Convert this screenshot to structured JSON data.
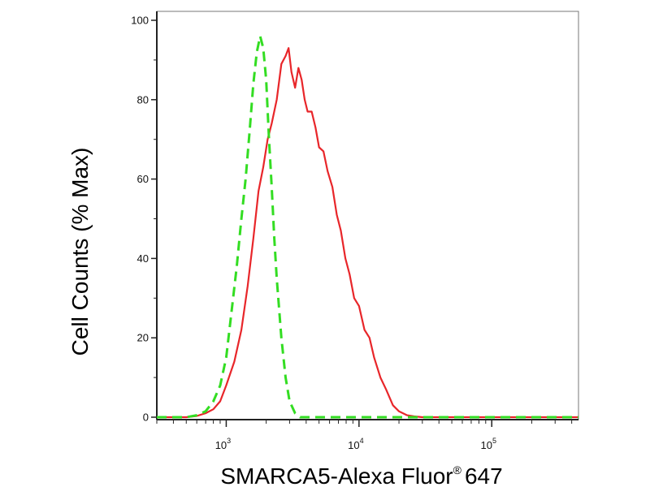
{
  "chart_data": {
    "type": "line",
    "title": "",
    "xlabel": "SMARCA5-Alexa Fluor",
    "xlabel_mark": "®",
    "xlabel_suffix": "647",
    "ylabel": "Cell Counts (% Max)",
    "xscale": "log",
    "xlim": [
      300,
      450000
    ],
    "ylim": [
      0,
      100
    ],
    "grid": false,
    "x_ticks": [
      {
        "base": "10",
        "exp": "3",
        "value": 1000
      },
      {
        "base": "10",
        "exp": "4",
        "value": 10000
      },
      {
        "base": "10",
        "exp": "5",
        "value": 100000
      }
    ],
    "y_ticks": [
      "0",
      "20",
      "40",
      "60",
      "80",
      "100"
    ],
    "series": [
      {
        "color": "#e8262a",
        "dash": "solid",
        "x": [
          300,
          400,
          500,
          600,
          700,
          800,
          900,
          1000,
          1150,
          1300,
          1450,
          1600,
          1750,
          1900,
          2050,
          2200,
          2400,
          2600,
          2800,
          2950,
          3100,
          3300,
          3500,
          3700,
          3900,
          4100,
          4400,
          4700,
          5000,
          5400,
          5800,
          6300,
          6800,
          7300,
          7900,
          8500,
          9200,
          10000,
          11000,
          12000,
          13000,
          14500,
          16000,
          18000,
          20000,
          23000,
          26000,
          30000,
          35000,
          45000,
          100000,
          450000
        ],
        "y": [
          0,
          0,
          0,
          0.3,
          1,
          2,
          4,
          8,
          14,
          22,
          33,
          45,
          57,
          63,
          70,
          74,
          80,
          89,
          91,
          93,
          87,
          83,
          88,
          85,
          80,
          77,
          77,
          73,
          68,
          67,
          62,
          58,
          51,
          47,
          40,
          36,
          30,
          28,
          22,
          20,
          15,
          10,
          7,
          3,
          1.5,
          0.5,
          0.2,
          0,
          0,
          0,
          0,
          0
        ]
      },
      {
        "color": "#33dd22",
        "dash": "dashed",
        "x": [
          300,
          500,
          600,
          700,
          800,
          900,
          1000,
          1100,
          1200,
          1300,
          1400,
          1500,
          1600,
          1700,
          1800,
          1900,
          2000,
          2100,
          2200,
          2300,
          2400,
          2600,
          2800,
          3000,
          3300,
          3600,
          4000,
          10000,
          450000
        ],
        "y": [
          0,
          0,
          0.5,
          1.5,
          4,
          8,
          15,
          27,
          38,
          50,
          60,
          72,
          84,
          92,
          96,
          93,
          85,
          70,
          58,
          45,
          35,
          20,
          10,
          4,
          1,
          0,
          0,
          0,
          0
        ]
      }
    ]
  }
}
